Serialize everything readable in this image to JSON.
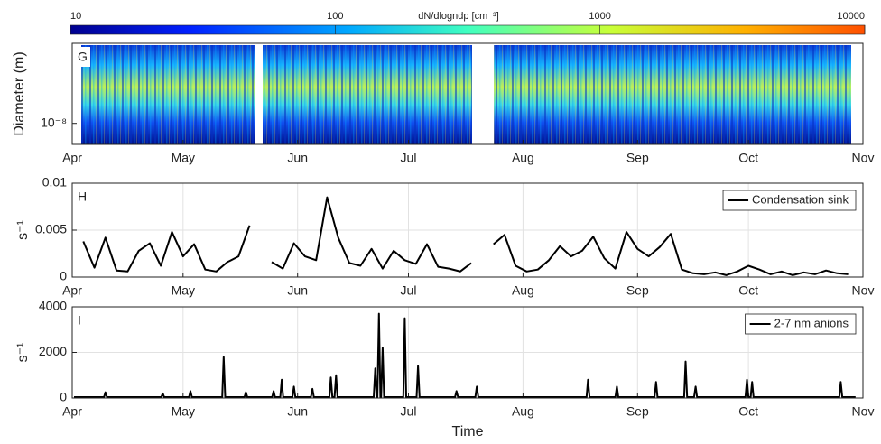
{
  "chart_data": [
    {
      "type": "heatmap",
      "panel_label": "G",
      "ylabel": "Diameter  (m)",
      "log_y": true,
      "ylim": [
        6e-09,
        7e-08
      ],
      "yticks": [
        {
          "value": 1e-08,
          "label": "10⁻⁸"
        }
      ],
      "xlim": [
        0,
        214
      ],
      "xticks": [
        {
          "value": 0,
          "label": "Apr"
        },
        {
          "value": 30,
          "label": "May"
        },
        {
          "value": 61,
          "label": "Jun"
        },
        {
          "value": 91,
          "label": "Jul"
        },
        {
          "value": 122,
          "label": "Aug"
        },
        {
          "value": 153,
          "label": "Sep"
        },
        {
          "value": 183,
          "label": "Oct"
        },
        {
          "value": 214,
          "label": "Nov"
        }
      ],
      "colorbar": {
        "title": "dN/dlogndp [cm⁻³]",
        "log": true,
        "lim": [
          10,
          10000
        ],
        "ticks": [
          10,
          100,
          1000,
          10000
        ]
      }
    },
    {
      "type": "line",
      "panel_label": "H",
      "ylabel": "s⁻¹",
      "grid": true,
      "legend": "upper right",
      "xlim": [
        0,
        214
      ],
      "xticks": [
        {
          "value": 0,
          "label": "Apr"
        },
        {
          "value": 30,
          "label": "May"
        },
        {
          "value": 61,
          "label": "Jun"
        },
        {
          "value": 91,
          "label": "Jul"
        },
        {
          "value": 122,
          "label": "Aug"
        },
        {
          "value": 153,
          "label": "Sep"
        },
        {
          "value": 183,
          "label": "Oct"
        },
        {
          "value": 214,
          "label": "Nov"
        }
      ],
      "ylim": [
        0,
        0.01
      ],
      "yticks": [
        0,
        0.005,
        0.01
      ],
      "series": [
        {
          "name": "Condensation sink",
          "color": "#000000",
          "x": [
            3,
            6,
            9,
            12,
            15,
            18,
            21,
            24,
            27,
            30,
            33,
            36,
            39,
            42,
            45,
            48,
            51,
            54,
            57,
            60,
            63,
            66,
            69,
            72,
            75,
            78,
            81,
            84,
            87,
            90,
            93,
            96,
            99,
            102,
            105,
            108,
            111,
            114,
            117,
            120,
            123,
            126,
            129,
            132,
            135,
            138,
            141,
            144,
            147,
            150,
            153,
            156,
            159,
            162,
            165,
            168,
            171,
            174,
            177,
            180,
            183,
            186,
            189,
            192,
            195,
            198,
            201,
            204,
            207,
            210
          ],
          "values": [
            0.0038,
            0.001,
            0.0042,
            0.0007,
            0.0006,
            0.0028,
            0.0036,
            0.0012,
            0.0048,
            0.0022,
            0.0035,
            0.0008,
            0.0006,
            0.0016,
            0.0022,
            0.0055,
            null,
            0.0016,
            0.0009,
            0.0036,
            0.0022,
            0.0018,
            0.0085,
            0.0042,
            0.0015,
            0.0012,
            0.003,
            0.0009,
            0.0028,
            0.0018,
            0.0014,
            0.0035,
            0.0011,
            0.0009,
            0.0006,
            0.0015,
            null,
            0.0035,
            0.0045,
            0.0012,
            0.0006,
            0.0008,
            0.0018,
            0.0033,
            0.0022,
            0.0028,
            0.0043,
            0.002,
            0.0009,
            0.0048,
            0.003,
            0.0022,
            0.0032,
            0.0046,
            0.0008,
            0.0004,
            0.0003,
            0.0005,
            0.0002,
            0.0006,
            0.0012,
            0.0008,
            0.0003,
            0.0006,
            0.0002,
            0.0005,
            0.0003,
            0.0007,
            0.0004,
            0.0003
          ]
        }
      ]
    },
    {
      "type": "line",
      "panel_label": "I",
      "ylabel": "s⁻¹",
      "xlabel": "Time",
      "grid": true,
      "legend": "upper right",
      "xlim": [
        0,
        214
      ],
      "xticks": [
        {
          "value": 0,
          "label": "Apr"
        },
        {
          "value": 30,
          "label": "May"
        },
        {
          "value": 61,
          "label": "Jun"
        },
        {
          "value": 91,
          "label": "Jul"
        },
        {
          "value": 122,
          "label": "Aug"
        },
        {
          "value": 153,
          "label": "Sep"
        },
        {
          "value": 183,
          "label": "Oct"
        },
        {
          "value": 214,
          "label": "Nov"
        }
      ],
      "ylim": [
        0,
        4000
      ],
      "yticks": [
        0,
        2000,
        4000
      ],
      "series": [
        {
          "name": "2-7 nm anions",
          "color": "#000000",
          "x": [
            0.5,
            8.6,
            9,
            9.4,
            24.1,
            24.5,
            24.9,
            31.6,
            32,
            32.4,
            40.6,
            41,
            41.4,
            46.6,
            47,
            47.4,
            54.1,
            54.5,
            54.9,
            56.3,
            56.7,
            57.1,
            59.6,
            60,
            60.4,
            64.6,
            65,
            65.4,
            69.6,
            70,
            70.4,
            71,
            71.4,
            71.8,
            81.6,
            82,
            82.4,
            82.6,
            83,
            83.4,
            83.6,
            84,
            84.4,
            89.6,
            90,
            90.4,
            93.2,
            93.6,
            94,
            103.6,
            104,
            104.4,
            109.1,
            109.5,
            109.9,
            139.2,
            139.6,
            140,
            147,
            147.4,
            147.8,
            157.6,
            158,
            158.4,
            165.6,
            166,
            166.4,
            168.3,
            168.7,
            169.1,
            182.2,
            182.6,
            183,
            183.6,
            184,
            184.4,
            207.6,
            208,
            208.4,
            212
          ],
          "values": [
            40,
            40,
            250,
            40,
            40,
            200,
            40,
            40,
            300,
            40,
            40,
            1800,
            40,
            40,
            250,
            40,
            40,
            300,
            40,
            40,
            800,
            40,
            40,
            500,
            40,
            40,
            400,
            40,
            40,
            900,
            40,
            40,
            1000,
            40,
            40,
            1300,
            40,
            40,
            3700,
            40,
            40,
            2200,
            40,
            40,
            3500,
            40,
            40,
            1400,
            40,
            40,
            300,
            40,
            40,
            500,
            40,
            40,
            800,
            40,
            40,
            500,
            40,
            40,
            700,
            40,
            40,
            1600,
            40,
            40,
            500,
            40,
            40,
            800,
            40,
            40,
            700,
            40,
            40,
            700,
            40,
            40
          ]
        }
      ]
    }
  ]
}
